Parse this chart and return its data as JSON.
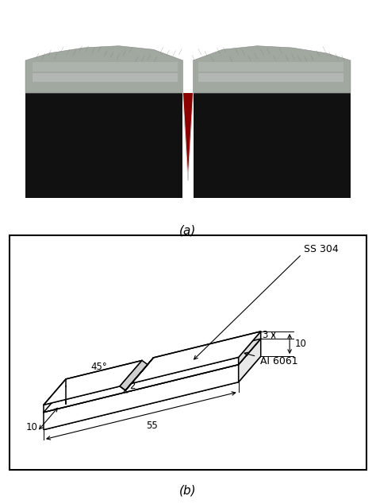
{
  "fig_width": 4.74,
  "fig_height": 6.34,
  "dpi": 100,
  "bg_color": "#ffffff",
  "label_a": "(a)",
  "label_b": "(b)",
  "photo_bg": "#8B0000",
  "line_color": "#000000",
  "dim_55": "55",
  "dim_10_bottom": "10",
  "dim_10_right": "10",
  "dim_3": "3",
  "dim_2": "2",
  "dim_45": "45°",
  "label_ss304": "SS 304",
  "label_al6061": "Al 6061",
  "photo_top_color": "#a8a8a8",
  "photo_body_color": "#1a1a1a",
  "photo_notch_color": "#555555",
  "photo_highlight": "#d0d0d0"
}
